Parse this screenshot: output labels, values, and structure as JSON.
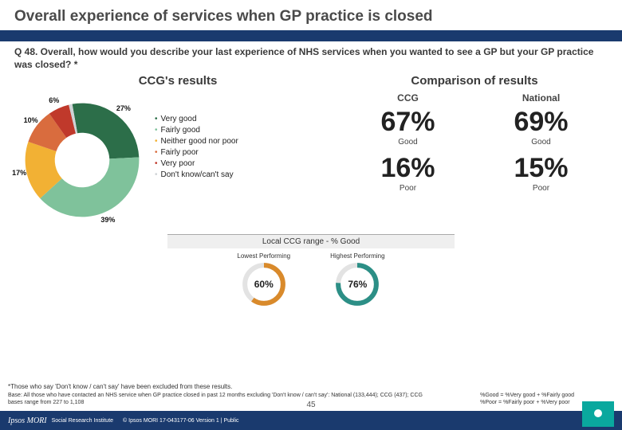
{
  "title": "Overall experience of services when GP practice is closed",
  "question": "Q 48. Overall, how would you describe your last experience of NHS services when you wanted to see a GP but your GP practice was closed? *",
  "left_heading": "CCG's results",
  "right_heading": "Comparison of results",
  "donut": {
    "type": "pie",
    "inner_radius_pct": 48,
    "segments": [
      {
        "key": "very_good",
        "label": "Very good",
        "value": 27,
        "color": "#2c6e49",
        "label_shown": "27%"
      },
      {
        "key": "fairly_good",
        "label": "Fairly good",
        "value": 39,
        "color": "#7fc29b",
        "label_shown": "39%"
      },
      {
        "key": "neither",
        "label": "Neither good nor poor",
        "value": 17,
        "color": "#f2b134",
        "label_shown": "17%"
      },
      {
        "key": "fairly_poor",
        "label": "Fairly poor",
        "value": 10,
        "color": "#d96c3e",
        "label_shown": "10%"
      },
      {
        "key": "very_poor",
        "label": "Very poor",
        "value": 6,
        "color": "#c0392b",
        "label_shown": "6%"
      },
      {
        "key": "dont_know",
        "label": "Don't know/can't say",
        "value": 1,
        "color": "#cfd3d6",
        "label_shown": ""
      }
    ],
    "start_angle_deg": -100,
    "label_fontsize": 9,
    "legend_fontsize": 10
  },
  "comparison": {
    "columns": [
      {
        "head": "CCG",
        "good_pct": "67%",
        "good_label": "Good",
        "poor_pct": "16%",
        "poor_label": "Poor"
      },
      {
        "head": "National",
        "good_pct": "69%",
        "good_label": "Good",
        "poor_pct": "15%",
        "poor_label": "Poor"
      }
    ],
    "big_fontsize": 34,
    "small_fontsize": 10
  },
  "range": {
    "title": "Local CCG range - % Good",
    "ring_bg": "#e3e3e3",
    "items": [
      {
        "caption": "Lowest Performing",
        "pct": 60,
        "label": "60%",
        "color": "#d98a2b"
      },
      {
        "caption": "Highest Performing",
        "pct": 76,
        "label": "76%",
        "color": "#2c8f86"
      }
    ]
  },
  "footnote": "*Those who say 'Don't know / can't say' have been excluded from these results.",
  "base_note": "Base: All those who have contacted an NHS service when GP practice closed in past 12 months excluding 'Don't know / can't say': National (133,444); CCG (437); CCG bases range from 227 to 1,108",
  "right_note_line1": "%Good = %Very good + %Fairly good",
  "right_note_line2": "%Poor = %Fairly poor + %Very poor",
  "page_number": "45",
  "footer": {
    "brand": "Ipsos MORI",
    "brand2": "Social Research Institute",
    "copyright": "© Ipsos MORI     17-043177-06 Version 1 | Public"
  },
  "colors": {
    "header_bar": "#1a3a6e",
    "background": "#ffffff",
    "text": "#333333",
    "logo_bg": "#0aa89e"
  }
}
